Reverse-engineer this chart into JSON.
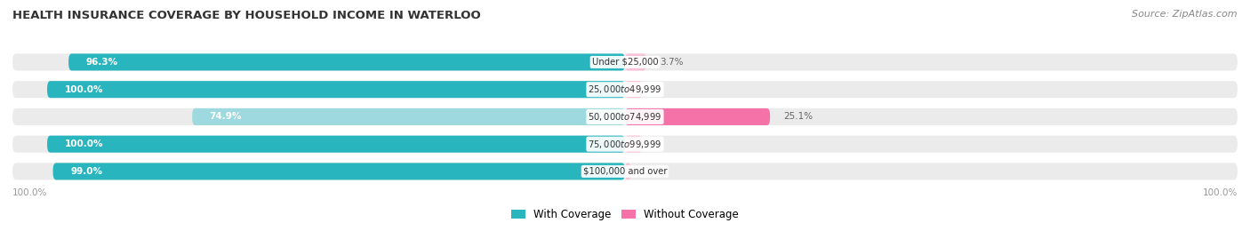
{
  "title": "HEALTH INSURANCE COVERAGE BY HOUSEHOLD INCOME IN WATERLOO",
  "source": "Source: ZipAtlas.com",
  "categories": [
    "Under $25,000",
    "$25,000 to $49,999",
    "$50,000 to $74,999",
    "$75,000 to $99,999",
    "$100,000 and over"
  ],
  "with_coverage": [
    96.3,
    100.0,
    74.9,
    100.0,
    99.0
  ],
  "without_coverage": [
    3.7,
    0.0,
    25.1,
    0.0,
    1.0
  ],
  "coverage_color": "#29b5be",
  "coverage_color_light": "#9dd9de",
  "without_color": "#f472a8",
  "without_color_light": "#f9c0d8",
  "bg_bar_color": "#ebebeb",
  "bg_color": "#ffffff",
  "x_left_label": "100.0%",
  "x_right_label": "100.0%",
  "legend_with": "With Coverage",
  "legend_without": "Without Coverage",
  "figsize": [
    14.06,
    2.69
  ],
  "dpi": 100
}
